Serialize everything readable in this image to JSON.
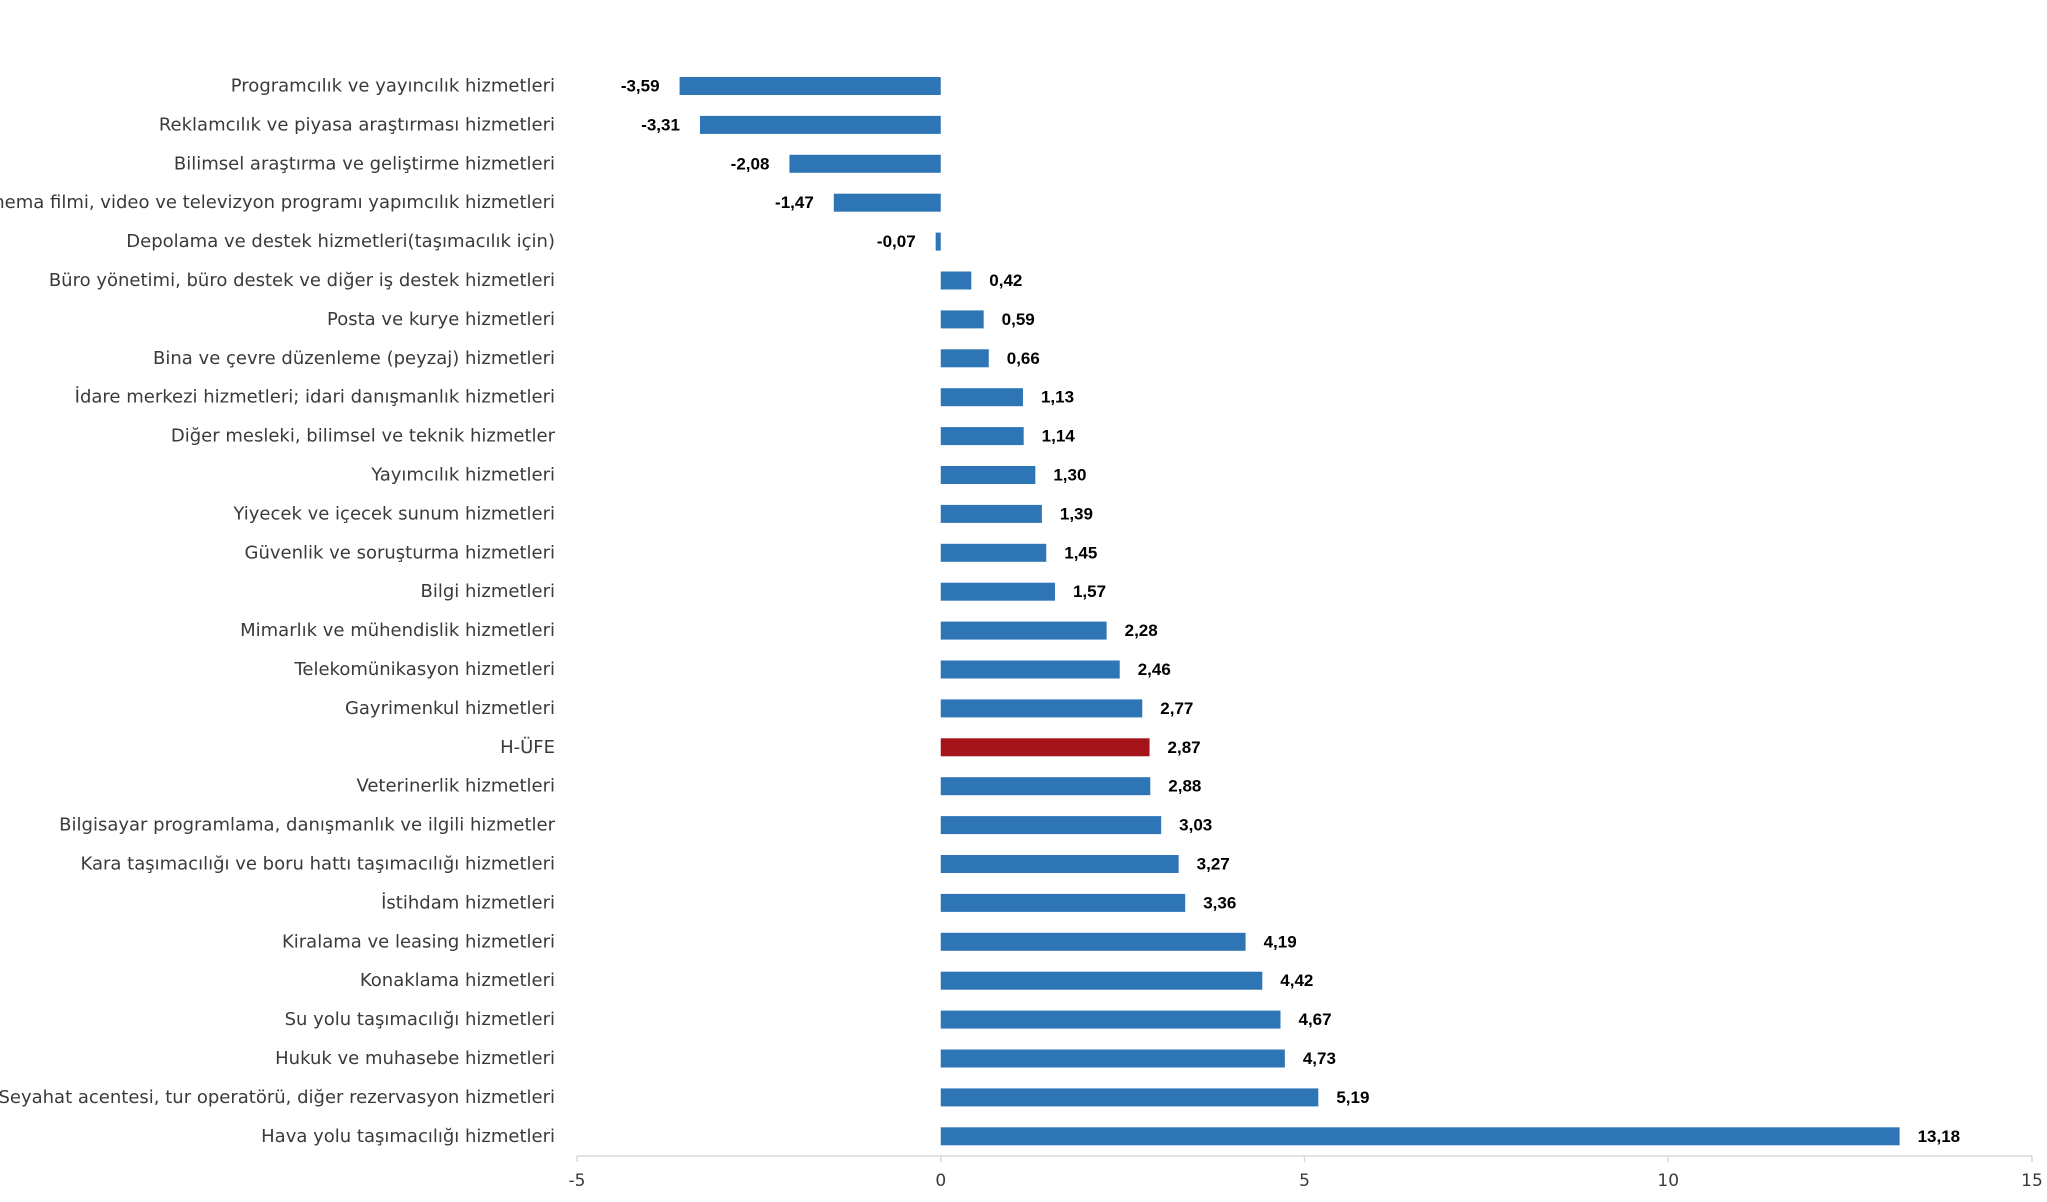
{
  "chart_data": {
    "type": "bar",
    "orientation": "horizontal",
    "title": "",
    "xlabel": "",
    "ylabel": "",
    "xlim": [
      -5,
      15
    ],
    "xticks": [
      -5,
      0,
      5,
      10,
      15
    ],
    "grid": false,
    "legend": "none",
    "categories": [
      "Programcılık ve yayıncılık hizmetleri",
      "Reklamcılık ve piyasa araştırması hizmetleri",
      "Bilimsel araştırma ve geliştirme hizmetleri",
      "Sinema filmi, video ve televizyon programı yapımcılık hizmetleri",
      "Depolama ve destek hizmetleri(taşımacılık için)",
      "Büro yönetimi, büro destek ve diğer iş destek hizmetleri",
      "Posta ve kurye hizmetleri",
      "Bina ve çevre düzenleme (peyzaj) hizmetleri",
      "İdare merkezi hizmetleri; idari danışmanlık hizmetleri",
      "Diğer mesleki, bilimsel ve teknik hizmetler",
      "Yayımcılık hizmetleri",
      "Yiyecek ve içecek sunum hizmetleri",
      "Güvenlik ve soruşturma hizmetleri",
      "Bilgi hizmetleri",
      "Mimarlık ve mühendislik hizmetleri",
      "Telekomünikasyon hizmetleri",
      "Gayrimenkul hizmetleri",
      "H-ÜFE",
      "Veterinerlik hizmetleri",
      "Bilgisayar programlama, danışmanlık ve ilgili hizmetler",
      "Kara taşımacılığı ve boru hattı taşımacılığı hizmetleri",
      "İstihdam hizmetleri",
      "Kiralama ve leasing hizmetleri",
      "Konaklama hizmetleri",
      "Su yolu taşımacılığı hizmetleri",
      "Hukuk ve muhasebe hizmetleri",
      "Seyahat acentesi, tur operatörü, diğer rezervasyon hizmetleri",
      "Hava yolu taşımacılığı hizmetleri"
    ],
    "values": [
      -3.59,
      -3.31,
      -2.08,
      -1.47,
      -0.07,
      0.42,
      0.59,
      0.66,
      1.13,
      1.14,
      1.3,
      1.39,
      1.45,
      1.57,
      2.28,
      2.46,
      2.77,
      2.87,
      2.88,
      3.03,
      3.27,
      3.36,
      4.19,
      4.42,
      4.67,
      4.73,
      5.19,
      13.18
    ],
    "value_labels": [
      "-3,59",
      "-3,31",
      "-2,08",
      "-1,47",
      "-0,07",
      "0,42",
      "0,59",
      "0,66",
      "1,13",
      "1,14",
      "1,30",
      "1,39",
      "1,45",
      "1,57",
      "2,28",
      "2,46",
      "2,77",
      "2,87",
      "2,88",
      "3,03",
      "3,27",
      "3,36",
      "4,19",
      "4,42",
      "4,67",
      "4,73",
      "5,19",
      "13,18"
    ],
    "highlight_category": "H-ÜFE",
    "colors": {
      "bar": "#2e75b6",
      "highlight": "#a5131b"
    }
  }
}
